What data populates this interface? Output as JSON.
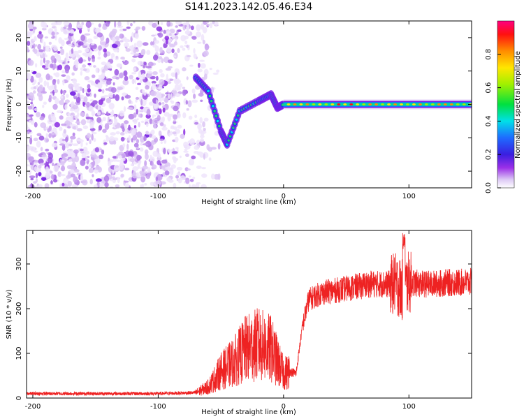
{
  "title": "S141.2023.142.05.46.E34",
  "colors": {
    "snr_line": "#ee2222",
    "noise_purple": "#8a2be2",
    "axis": "#000000"
  },
  "chart_data": [
    {
      "type": "heatmap",
      "xlabel": "Height of straight line (km)",
      "ylabel": "Frequency (Hz)",
      "xlim": [
        -205,
        150
      ],
      "ylim": [
        -25,
        25
      ],
      "xticks": [
        -200,
        -100,
        0,
        100
      ],
      "yticks": [
        -20,
        -10,
        0,
        10,
        20
      ],
      "colorbar": {
        "label": "Normalized spectral amplitude",
        "range": [
          0,
          1
        ],
        "ticks": [
          0.0,
          0.2,
          0.4,
          0.6,
          0.8
        ],
        "colormap": "rainbow (white-purple-blue-cyan-green-yellow-red)"
      },
      "features": {
        "noise_region_x": [
          -205,
          -65
        ],
        "noise_region_freq": [
          -25,
          25
        ],
        "chirp_track_x": [
          -70,
          0
        ],
        "chirp_track_freq": [
          [
            -70,
            8
          ],
          [
            -60,
            4
          ],
          [
            -50,
            -8
          ],
          [
            -45,
            -12
          ],
          [
            -35,
            -2
          ],
          [
            -20,
            1
          ],
          [
            -10,
            3
          ],
          [
            -5,
            -1
          ],
          [
            0,
            0
          ]
        ],
        "carrier_line_x": [
          0,
          150
        ],
        "carrier_freq": 0,
        "carrier_amplitude": 0.8
      }
    },
    {
      "type": "line",
      "xlabel": "Height of straight line (km)",
      "ylabel": "SNR (10 * v/v)",
      "xlim": [
        -205,
        150
      ],
      "ylim": [
        0,
        375
      ],
      "xticks": [
        -200,
        -100,
        0,
        100
      ],
      "yticks": [
        0,
        100,
        200,
        300
      ],
      "series": [
        {
          "x": [
            -205,
            -150,
            -100,
            -70,
            -60,
            -50,
            -40,
            -30,
            -20,
            -10,
            0,
            5,
            10,
            15,
            20,
            30,
            40,
            50,
            60,
            70,
            80,
            90,
            95,
            100,
            110,
            120,
            130,
            140,
            150
          ],
          "y": [
            10,
            10,
            10,
            12,
            25,
            60,
            80,
            110,
            120,
            110,
            55,
            60,
            55,
            160,
            220,
            235,
            240,
            245,
            250,
            255,
            255,
            255,
            240,
            260,
            255,
            255,
            258,
            258,
            260
          ],
          "peak_max": 370
        }
      ],
      "grid": false
    }
  ]
}
